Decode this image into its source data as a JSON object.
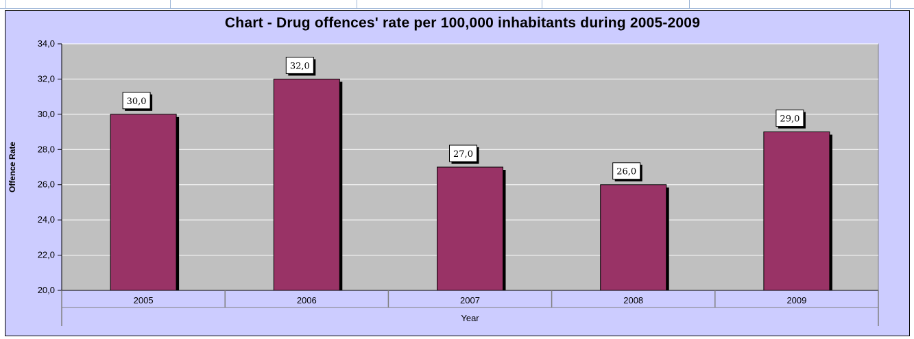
{
  "chart_data": {
    "type": "bar",
    "title": "Chart - Drug offences' rate per 100,000 inhabitants during 2005-2009",
    "xlabel": "Year",
    "ylabel": "Offence Rate",
    "categories": [
      "2005",
      "2006",
      "2007",
      "2008",
      "2009"
    ],
    "values": [
      30.0,
      32.0,
      27.0,
      26.0,
      29.0
    ],
    "data_labels": [
      "30,0",
      "32,0",
      "27,0",
      "26,0",
      "29,0"
    ],
    "ylim": [
      20.0,
      34.0
    ],
    "ytick_values": [
      20,
      22,
      24,
      26,
      28,
      30,
      32,
      34
    ],
    "ytick_labels": [
      "20,0",
      "22,0",
      "24,0",
      "26,0",
      "28,0",
      "30,0",
      "32,0",
      "34,0"
    ],
    "grid": true,
    "legend": "none",
    "colors": {
      "bar": "#993366",
      "plot_background": "#c0c0c0",
      "chart_background": "#ccccff",
      "gridline": "#ffffff"
    }
  }
}
